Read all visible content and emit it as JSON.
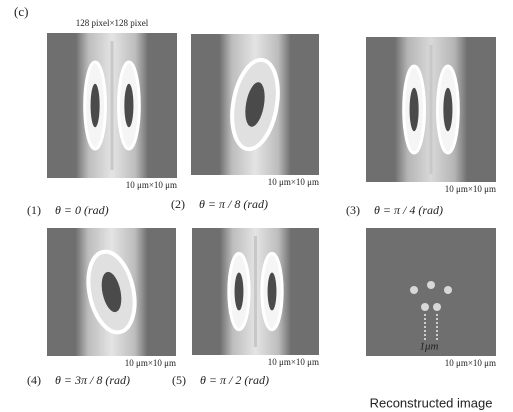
{
  "label": "(c)",
  "size_note": "128 pixel×128 pixel",
  "panels": [
    {
      "scale": "10 μm×10 μm",
      "number": "(1)",
      "caption": "θ = 0 (rad)"
    },
    {
      "scale": "10 μm×10 μm",
      "number": "(2)",
      "caption": "θ = π / 8 (rad)"
    },
    {
      "scale": "10 μm×10 μm",
      "number": "(3)",
      "caption": "θ = π / 4 (rad)"
    },
    {
      "scale": "10 μm×10 μm",
      "number": "(4)",
      "caption": "θ = 3π / 8 (rad)"
    },
    {
      "scale": "10 μm×10 μm",
      "number": "(5)",
      "caption": "θ = π / 2 (rad)"
    },
    {
      "scale": "10 μm×10 μm",
      "caption": "Reconstructed image",
      "marker": "1μm"
    }
  ]
}
